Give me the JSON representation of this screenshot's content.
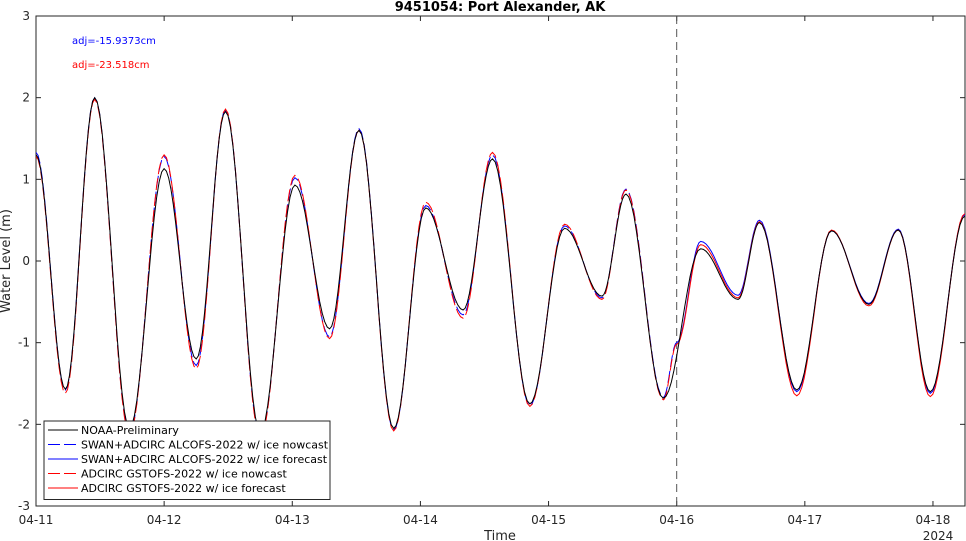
{
  "chart_data": {
    "type": "line",
    "title": "9451054: Port Alexander, AK",
    "xlabel": "Time",
    "ylabel": "Water Level (m)",
    "year_label": "2024",
    "ylim": [
      -3,
      3
    ],
    "yticks": [
      -3,
      -2,
      -1,
      0,
      1,
      2,
      3
    ],
    "xlim": [
      "2024-04-11 00:00",
      "2024-04-18 06:00"
    ],
    "xticks": [
      "04-11",
      "04-12",
      "04-13",
      "04-14",
      "04-15",
      "04-16",
      "04-17",
      "04-18"
    ],
    "forecast_start": "2024-04-16 00:00",
    "annotations": [
      {
        "text": "adj=-15.9373cm",
        "color": "#0000ff"
      },
      {
        "text": "adj=-23.518cm",
        "color": "#ff0000"
      }
    ],
    "legend_position": "bottom-left",
    "grid": false,
    "series": [
      {
        "name": "NOAA-Preliminary",
        "color": "#000000",
        "dash": "solid",
        "points": [
          [
            "2024-04-11 00:00",
            1.3
          ],
          [
            "2024-04-11 05:30",
            -1.57
          ],
          [
            "2024-04-11 11:00",
            2.0
          ],
          [
            "2024-04-11 17:30",
            -2.05
          ],
          [
            "2024-04-12 00:00",
            1.13
          ],
          [
            "2024-04-12 06:00",
            -1.2
          ],
          [
            "2024-04-12 11:30",
            1.83
          ],
          [
            "2024-04-12 18:00",
            -2.1
          ],
          [
            "2024-04-13 00:30",
            0.93
          ],
          [
            "2024-04-13 07:00",
            -0.83
          ],
          [
            "2024-04-13 12:30",
            1.6
          ],
          [
            "2024-04-13 19:00",
            -2.05
          ],
          [
            "2024-04-14 01:00",
            0.65
          ],
          [
            "2024-04-14 08:00",
            -0.6
          ],
          [
            "2024-04-14 13:30",
            1.25
          ],
          [
            "2024-04-14 20:30",
            -1.75
          ],
          [
            "2024-04-15 03:00",
            0.4
          ],
          [
            "2024-04-15 10:00",
            -0.43
          ],
          [
            "2024-04-15 14:30",
            0.82
          ],
          [
            "2024-04-15 21:30",
            -1.68
          ],
          [
            "2024-04-16 04:30",
            0.15
          ],
          [
            "2024-04-16 11:30",
            -0.47
          ],
          [
            "2024-04-16 15:30",
            0.47
          ],
          [
            "2024-04-16 22:30",
            -1.58
          ],
          [
            "2024-04-17 05:00",
            0.37
          ],
          [
            "2024-04-17 12:00",
            -0.53
          ],
          [
            "2024-04-17 17:30",
            0.38
          ],
          [
            "2024-04-17 23:30",
            -1.6
          ],
          [
            "2024-04-18 06:00",
            0.55
          ]
        ]
      },
      {
        "name": "SWAN+ADCIRC ALCOFS-2022 w/ ice nowcast",
        "color": "#0000ff",
        "dash": "long",
        "points": [
          [
            "2024-04-11 00:00",
            1.33
          ],
          [
            "2024-04-11 05:30",
            -1.58
          ],
          [
            "2024-04-11 11:00",
            2.0
          ],
          [
            "2024-04-11 17:30",
            -2.1
          ],
          [
            "2024-04-12 00:00",
            1.28
          ],
          [
            "2024-04-12 06:00",
            -1.28
          ],
          [
            "2024-04-12 11:30",
            1.85
          ],
          [
            "2024-04-12 18:00",
            -2.15
          ],
          [
            "2024-04-13 00:30",
            1.02
          ],
          [
            "2024-04-13 07:00",
            -0.93
          ],
          [
            "2024-04-13 12:30",
            1.62
          ],
          [
            "2024-04-13 19:00",
            -2.07
          ],
          [
            "2024-04-14 01:00",
            0.68
          ],
          [
            "2024-04-14 08:00",
            -0.66
          ],
          [
            "2024-04-14 13:30",
            1.3
          ],
          [
            "2024-04-14 20:30",
            -1.77
          ],
          [
            "2024-04-15 03:00",
            0.43
          ],
          [
            "2024-04-15 10:00",
            -0.45
          ],
          [
            "2024-04-15 14:30",
            0.88
          ],
          [
            "2024-04-15 21:30",
            -1.67
          ],
          [
            "2024-04-16 00:00",
            -1.0
          ]
        ]
      },
      {
        "name": "SWAN+ADCIRC ALCOFS-2022 w/ ice forecast",
        "color": "#0000ff",
        "dash": "solid",
        "points": [
          [
            "2024-04-16 00:00",
            -1.0
          ],
          [
            "2024-04-16 04:30",
            0.24
          ],
          [
            "2024-04-16 11:30",
            -0.42
          ],
          [
            "2024-04-16 15:30",
            0.5
          ],
          [
            "2024-04-16 22:30",
            -1.6
          ],
          [
            "2024-04-17 05:00",
            0.37
          ],
          [
            "2024-04-17 12:00",
            -0.52
          ],
          [
            "2024-04-17 17:30",
            0.39
          ],
          [
            "2024-04-17 23:30",
            -1.62
          ],
          [
            "2024-04-18 06:00",
            0.57
          ]
        ]
      },
      {
        "name": "ADCIRC GSTOFS-2022 w/ ice nowcast",
        "color": "#ff0000",
        "dash": "long",
        "points": [
          [
            "2024-04-11 00:00",
            1.28
          ],
          [
            "2024-04-11 05:30",
            -1.62
          ],
          [
            "2024-04-11 11:00",
            1.98
          ],
          [
            "2024-04-11 17:30",
            -2.12
          ],
          [
            "2024-04-12 00:00",
            1.3
          ],
          [
            "2024-04-12 06:00",
            -1.32
          ],
          [
            "2024-04-12 11:30",
            1.86
          ],
          [
            "2024-04-12 18:00",
            -2.17
          ],
          [
            "2024-04-13 00:30",
            1.05
          ],
          [
            "2024-04-13 07:00",
            -0.95
          ],
          [
            "2024-04-13 12:30",
            1.6
          ],
          [
            "2024-04-13 19:00",
            -2.08
          ],
          [
            "2024-04-14 01:00",
            0.72
          ],
          [
            "2024-04-14 08:00",
            -0.7
          ],
          [
            "2024-04-14 13:30",
            1.33
          ],
          [
            "2024-04-14 20:30",
            -1.78
          ],
          [
            "2024-04-15 03:00",
            0.45
          ],
          [
            "2024-04-15 10:00",
            -0.47
          ],
          [
            "2024-04-15 14:30",
            0.87
          ],
          [
            "2024-04-15 21:30",
            -1.7
          ],
          [
            "2024-04-16 00:00",
            -1.02
          ]
        ]
      },
      {
        "name": "ADCIRC GSTOFS-2022 w/ ice forecast",
        "color": "#ff0000",
        "dash": "solid",
        "points": [
          [
            "2024-04-16 00:00",
            -1.02
          ],
          [
            "2024-04-16 04:30",
            0.2
          ],
          [
            "2024-04-16 11:30",
            -0.45
          ],
          [
            "2024-04-16 15:30",
            0.48
          ],
          [
            "2024-04-16 22:30",
            -1.65
          ],
          [
            "2024-04-17 05:00",
            0.38
          ],
          [
            "2024-04-17 12:00",
            -0.55
          ],
          [
            "2024-04-17 17:30",
            0.38
          ],
          [
            "2024-04-17 23:30",
            -1.66
          ],
          [
            "2024-04-18 06:00",
            0.58
          ]
        ]
      }
    ]
  }
}
